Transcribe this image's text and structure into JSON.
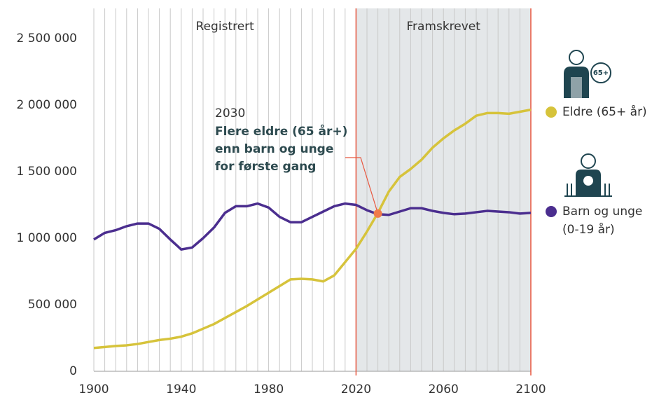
{
  "chart_data": {
    "type": "line",
    "x": [
      1900,
      1905,
      1910,
      1915,
      1920,
      1925,
      1930,
      1935,
      1940,
      1945,
      1950,
      1955,
      1960,
      1965,
      1970,
      1975,
      1980,
      1985,
      1990,
      1995,
      2000,
      2005,
      2010,
      2015,
      2020,
      2025,
      2030,
      2035,
      2040,
      2045,
      2050,
      2055,
      2060,
      2065,
      2070,
      2075,
      2080,
      2085,
      2090,
      2095,
      2100
    ],
    "series": [
      {
        "name": "Eldre (65+ år)",
        "icon_label": "65+",
        "color": "#d6c33b",
        "values": [
          175000,
          182000,
          190000,
          195000,
          205000,
          220000,
          235000,
          245000,
          260000,
          285000,
          320000,
          355000,
          400000,
          445000,
          490000,
          540000,
          590000,
          640000,
          690000,
          695000,
          690000,
          675000,
          720000,
          820000,
          920000,
          1050000,
          1190000,
          1350000,
          1460000,
          1520000,
          1590000,
          1680000,
          1750000,
          1810000,
          1860000,
          1920000,
          1940000,
          1940000,
          1935000,
          1950000,
          1965000
        ]
      },
      {
        "name": "Barn og unge (0-19 år)",
        "color": "#4b2e8f",
        "values": [
          990000,
          1040000,
          1060000,
          1090000,
          1110000,
          1110000,
          1070000,
          990000,
          915000,
          930000,
          1000000,
          1080000,
          1190000,
          1240000,
          1240000,
          1260000,
          1230000,
          1160000,
          1120000,
          1120000,
          1160000,
          1200000,
          1240000,
          1260000,
          1250000,
          1210000,
          1180000,
          1175000,
          1200000,
          1225000,
          1225000,
          1205000,
          1190000,
          1180000,
          1185000,
          1195000,
          1205000,
          1200000,
          1195000,
          1185000,
          1190000
        ]
      }
    ],
    "xlim": [
      1900,
      2100
    ],
    "xticks": [
      1900,
      1940,
      1980,
      2020,
      2060,
      2100
    ],
    "xminorticks": [
      1900,
      1905,
      1910,
      1915,
      1920,
      1925,
      1930,
      1935,
      1940,
      1945,
      1950,
      1955,
      1960,
      1965,
      1970,
      1975,
      1980,
      1985,
      1990,
      1995,
      2000,
      2005,
      2010,
      2015,
      2020,
      2025,
      2030,
      2035,
      2040,
      2045,
      2050,
      2055,
      2060,
      2065,
      2070,
      2075,
      2080,
      2085,
      2090,
      2095,
      2100
    ],
    "ylim": [
      0,
      2500000
    ],
    "yticks": [
      0,
      {
        "value": 500000,
        "label": "500 000"
      },
      {
        "value": 1000000,
        "label": "1 000 000"
      },
      {
        "value": 1500000,
        "label": "1 500 000"
      },
      {
        "value": 2000000,
        "label": "2 000 000"
      },
      {
        "value": 2500000,
        "label": "2 500 000"
      }
    ],
    "regions": [
      {
        "label": "Registrert",
        "start": 1900,
        "end": 2020,
        "shaded": false
      },
      {
        "label": "Framskrevet",
        "start": 2020,
        "end": 2100,
        "shaded": true
      }
    ],
    "annotation": {
      "x": 2030,
      "y": 1185000,
      "text": [
        "Flere eldre (65 år+)",
        "enn barn og unge",
        "for første gang"
      ]
    },
    "legend": "right"
  }
}
